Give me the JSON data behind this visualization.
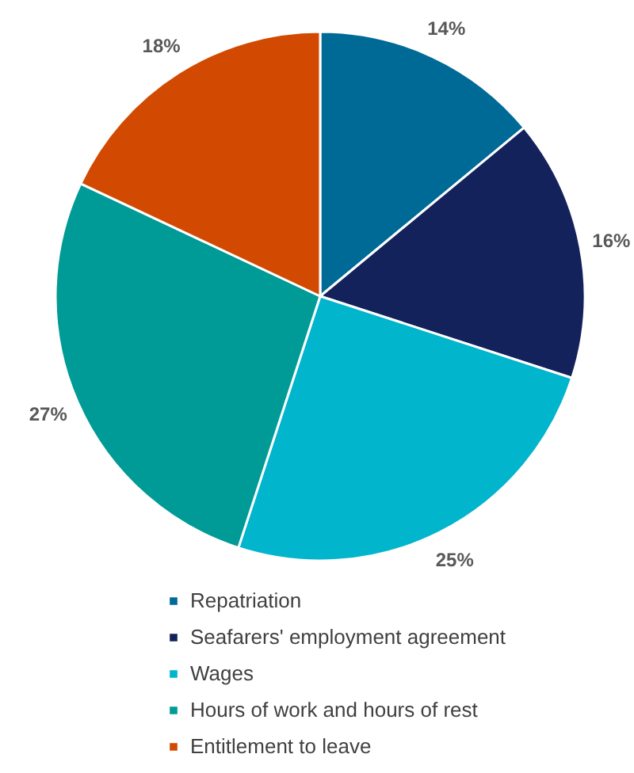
{
  "chart_data": {
    "type": "pie",
    "categories": [
      "Repatriation",
      "Seafarers' employment agreement",
      "Wages",
      "Hours of work and hours of rest",
      "Entitlement to leave"
    ],
    "values": [
      14,
      16,
      25,
      27,
      18
    ],
    "value_labels": [
      "14%",
      "16%",
      "25%",
      "27%",
      "18%"
    ],
    "colors": [
      "#006a96",
      "#14225c",
      "#00b5cc",
      "#009b96",
      "#d24a02"
    ],
    "legend": "bottom"
  }
}
